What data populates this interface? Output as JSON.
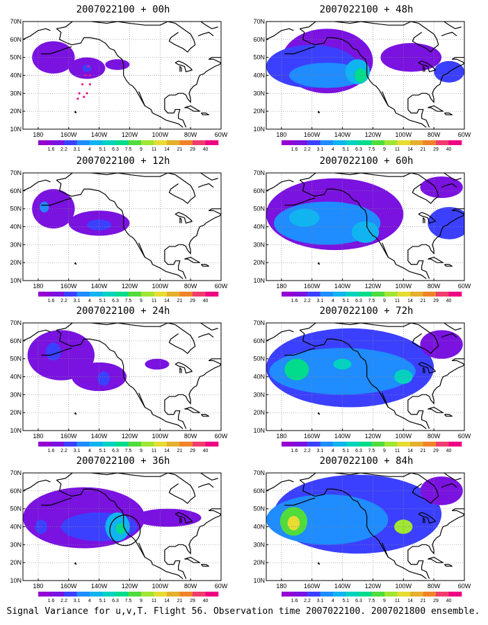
{
  "figure": {
    "caption": "Signal Variance for u,v,T. Flight 56. Observation time 2007022100. 2007021800 ensemble."
  },
  "chart_data": {
    "type": "heatmap",
    "lat_ticks": [
      "70N",
      "60N",
      "50N",
      "40N",
      "30N",
      "20N",
      "10N"
    ],
    "lon_ticks": [
      "180",
      "160W",
      "140W",
      "120W",
      "100W",
      "80W",
      "60W"
    ],
    "colorbar_levels": [
      "1.6",
      "2.2",
      "3.1",
      "4",
      "5.1",
      "6.3",
      "7.5",
      "9",
      "11",
      "14",
      "21",
      "29",
      "40"
    ],
    "colorbar_colors": [
      "#9400d3",
      "#7a12e0",
      "#3b40ff",
      "#1f8cff",
      "#10b4f0",
      "#00d2c0",
      "#00dc8c",
      "#50dc3c",
      "#a0e632",
      "#e6dc32",
      "#e6af2d",
      "#f08228",
      "#f03c6e",
      "#f00082"
    ],
    "panels": [
      {
        "title": "2007022100 + 00h",
        "blobs": [
          {
            "lon": -170,
            "lat": 50,
            "rx": 14,
            "ry": 9,
            "v": 1.8
          },
          {
            "lon": -148,
            "lat": 44,
            "rx": 12,
            "ry": 6,
            "v": 1.8
          },
          {
            "lon": -128,
            "lat": 46,
            "rx": 8,
            "ry": 3,
            "v": 1.7
          },
          {
            "lon": -148,
            "lat": 44,
            "rx": 3,
            "ry": 2,
            "v": 2.4
          }
        ],
        "track": [
          [
            -147,
            45
          ],
          [
            -149,
            40
          ],
          [
            -151,
            35
          ],
          [
            -153,
            30
          ],
          [
            -154,
            27
          ],
          [
            -147,
            45
          ],
          [
            -146,
            40
          ],
          [
            -146,
            35
          ],
          [
            -148,
            30
          ],
          [
            -150,
            28
          ]
        ],
        "circle": null
      },
      {
        "title": "2007022100 + 48h",
        "blobs": [
          {
            "lon": -150,
            "lat": 48,
            "rx": 30,
            "ry": 18,
            "v": 2.0
          },
          {
            "lon": -160,
            "lat": 45,
            "rx": 30,
            "ry": 12,
            "v": 2.6
          },
          {
            "lon": -150,
            "lat": 40,
            "rx": 25,
            "ry": 7,
            "v": 3.4
          },
          {
            "lon": -130,
            "lat": 42,
            "rx": 8,
            "ry": 7,
            "v": 4.6
          },
          {
            "lon": -128,
            "lat": 40,
            "rx": 4,
            "ry": 4,
            "v": 6.8
          },
          {
            "lon": -95,
            "lat": 50,
            "rx": 20,
            "ry": 8,
            "v": 1.8
          },
          {
            "lon": -70,
            "lat": 42,
            "rx": 10,
            "ry": 6,
            "v": 2.4
          }
        ],
        "track": [],
        "circle": null
      },
      {
        "title": "2007022100 + 12h",
        "blobs": [
          {
            "lon": -170,
            "lat": 50,
            "rx": 14,
            "ry": 11,
            "v": 1.9
          },
          {
            "lon": -140,
            "lat": 42,
            "rx": 20,
            "ry": 7,
            "v": 1.9
          },
          {
            "lon": -140,
            "lat": 41,
            "rx": 8,
            "ry": 3,
            "v": 2.6
          },
          {
            "lon": -176,
            "lat": 51,
            "rx": 3,
            "ry": 3,
            "v": 3.2
          }
        ],
        "track": [],
        "circle": null
      },
      {
        "title": "2007022100 + 60h",
        "blobs": [
          {
            "lon": -145,
            "lat": 47,
            "rx": 45,
            "ry": 20,
            "v": 2.0
          },
          {
            "lon": -150,
            "lat": 42,
            "rx": 35,
            "ry": 12,
            "v": 3.2
          },
          {
            "lon": -125,
            "lat": 37,
            "rx": 9,
            "ry": 6,
            "v": 5.0
          },
          {
            "lon": -165,
            "lat": 45,
            "rx": 10,
            "ry": 5,
            "v": 4.4
          },
          {
            "lon": -70,
            "lat": 42,
            "rx": 14,
            "ry": 9,
            "v": 2.6
          },
          {
            "lon": -75,
            "lat": 62,
            "rx": 14,
            "ry": 6,
            "v": 1.8
          }
        ],
        "track": [],
        "circle": null
      },
      {
        "title": "2007022100 + 24h",
        "blobs": [
          {
            "lon": -165,
            "lat": 52,
            "rx": 22,
            "ry": 14,
            "v": 1.8
          },
          {
            "lon": -140,
            "lat": 40,
            "rx": 18,
            "ry": 8,
            "v": 1.9
          },
          {
            "lon": -170,
            "lat": 54,
            "rx": 5,
            "ry": 5,
            "v": 3.0
          },
          {
            "lon": -137,
            "lat": 39,
            "rx": 4,
            "ry": 4,
            "v": 3.0
          },
          {
            "lon": -102,
            "lat": 47,
            "rx": 8,
            "ry": 3,
            "v": 1.8
          }
        ],
        "track": [],
        "circle": null
      },
      {
        "title": "2007022100 + 72h",
        "blobs": [
          {
            "lon": -135,
            "lat": 45,
            "rx": 55,
            "ry": 22,
            "v": 2.2
          },
          {
            "lon": -140,
            "lat": 43,
            "rx": 48,
            "ry": 13,
            "v": 3.6
          },
          {
            "lon": -170,
            "lat": 44,
            "rx": 8,
            "ry": 6,
            "v": 7.0
          },
          {
            "lon": -140,
            "lat": 47,
            "rx": 6,
            "ry": 3,
            "v": 6.0
          },
          {
            "lon": -100,
            "lat": 40,
            "rx": 6,
            "ry": 4,
            "v": 6.0
          },
          {
            "lon": -75,
            "lat": 58,
            "rx": 14,
            "ry": 8,
            "v": 1.8
          }
        ],
        "track": [],
        "circle": null
      },
      {
        "title": "2007022100 + 36h",
        "blobs": [
          {
            "lon": -150,
            "lat": 45,
            "rx": 40,
            "ry": 17,
            "v": 1.8
          },
          {
            "lon": -140,
            "lat": 40,
            "rx": 25,
            "ry": 8,
            "v": 2.4
          },
          {
            "lon": -128,
            "lat": 40,
            "rx": 8,
            "ry": 8,
            "v": 4.6
          },
          {
            "lon": -126,
            "lat": 39,
            "rx": 3,
            "ry": 3,
            "v": 7.0
          },
          {
            "lon": -95,
            "lat": 45,
            "rx": 22,
            "ry": 5,
            "v": 1.8
          },
          {
            "lon": -178,
            "lat": 40,
            "rx": 4,
            "ry": 4,
            "v": 2.6
          }
        ],
        "track": [],
        "circle": {
          "lon": -123,
          "lat": 38,
          "r": 10
        }
      },
      {
        "title": "2007022100 + 84h",
        "blobs": [
          {
            "lon": -130,
            "lat": 47,
            "rx": 55,
            "ry": 22,
            "v": 2.2
          },
          {
            "lon": -150,
            "lat": 44,
            "rx": 40,
            "ry": 14,
            "v": 3.6
          },
          {
            "lon": -172,
            "lat": 43,
            "rx": 9,
            "ry": 8,
            "v": 8.5
          },
          {
            "lon": -172,
            "lat": 42,
            "rx": 4,
            "ry": 4,
            "v": 12
          },
          {
            "lon": -100,
            "lat": 40,
            "rx": 6,
            "ry": 4,
            "v": 9.5
          },
          {
            "lon": -75,
            "lat": 60,
            "rx": 14,
            "ry": 8,
            "v": 1.8
          }
        ],
        "track": [],
        "circle": null
      }
    ]
  }
}
